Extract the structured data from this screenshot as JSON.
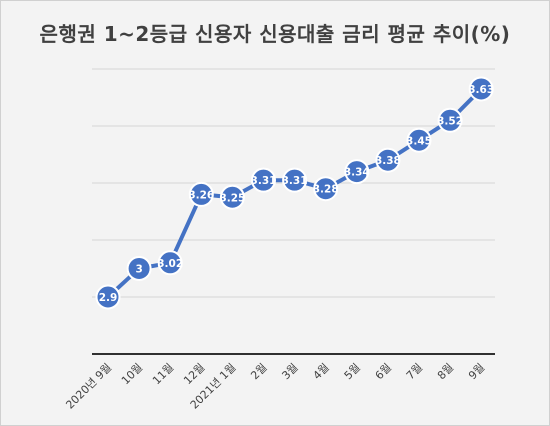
{
  "chart_data": {
    "type": "line",
    "title": "은행권 1~2등급 신용자 신용대출 금리 평균 추이(%)",
    "xlabel": "",
    "ylabel": "",
    "categories": [
      "2020년 9월",
      "10월",
      "11월",
      "12월",
      "2021년 1월",
      "2월",
      "3월",
      "4월",
      "5월",
      "6월",
      "7월",
      "8월",
      "9월"
    ],
    "series": [
      {
        "values": [
          2.9,
          3.0,
          3.02,
          3.26,
          3.25,
          3.31,
          3.31,
          3.28,
          3.34,
          3.38,
          3.45,
          3.52,
          3.63
        ]
      }
    ],
    "data_labels": [
      "2.9",
      "3",
      "3.02",
      "3.26",
      "3.25",
      "3.31",
      "3.31",
      "3.28",
      "3.34",
      "3.38",
      "3.45",
      "3.52",
      "3.63"
    ],
    "ylim": [
      2.7,
      3.7
    ],
    "y_gridline_step": 0.1,
    "y_tick_labels_shown": false,
    "grid": true,
    "legend": "none",
    "colors": {
      "series": "#4472c4",
      "background": "#f3f3f3",
      "grid": "#d6d6d6",
      "axis": "#303030"
    }
  }
}
